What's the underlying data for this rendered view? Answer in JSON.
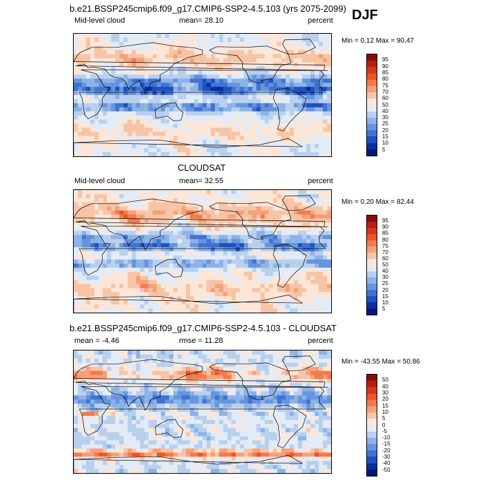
{
  "season": "DJF",
  "panels": [
    {
      "title": "b.e21.BSSP245cmip6.f09_g17.CMIP6-SSP2-4.5.103 (yrs 2075-2099)",
      "left_label": "Mid-level cloud",
      "center_label": "mean=  28.10",
      "right_label": "percent",
      "minmax": "Min =   0.12 Max =  90.47",
      "colorbar": {
        "labels": [
          "95",
          "90",
          "85",
          "80",
          "75",
          "70",
          "60",
          "50",
          "40",
          "30",
          "25",
          "20",
          "15",
          "10",
          "5"
        ],
        "colors": [
          "#8b0a0a",
          "#b5200e",
          "#d6371a",
          "#e9552c",
          "#f27a4c",
          "#f6a07a",
          "#f7c4a6",
          "#fbe6d8",
          "#e2ebf6",
          "#b8d0ee",
          "#8db2e6",
          "#6694dd",
          "#3f73d3",
          "#1e50c4",
          "#0a2e9e",
          "#001a7a"
        ]
      },
      "field": "model"
    },
    {
      "title": "CLOUDSAT",
      "left_label": "Mid-level cloud",
      "center_label": "mean=  32.55",
      "right_label": "percent",
      "minmax": "Min =   0.20 Max =  82.44",
      "colorbar": {
        "labels": [
          "95",
          "90",
          "85",
          "80",
          "75",
          "70",
          "60",
          "50",
          "40",
          "30",
          "25",
          "20",
          "15",
          "10",
          "5"
        ],
        "colors": [
          "#8b0a0a",
          "#b5200e",
          "#d6371a",
          "#e9552c",
          "#f27a4c",
          "#f6a07a",
          "#f7c4a6",
          "#fbe6d8",
          "#e2ebf6",
          "#b8d0ee",
          "#8db2e6",
          "#6694dd",
          "#3f73d3",
          "#1e50c4",
          "#0a2e9e",
          "#001a7a"
        ]
      },
      "field": "obs"
    },
    {
      "title": "b.e21.BSSP245cmip6.f09_g17.CMIP6-SSP2-4.5.103 - CLOUDSAT",
      "left_label": "mean =  -4.46",
      "center_label": "rmse =  11.28",
      "right_label": "percent",
      "minmax": "Min = -43.55 Max =  50.86",
      "colorbar": {
        "labels": [
          "50",
          "40",
          "30",
          "20",
          "15",
          "10",
          "5",
          "0",
          "-5",
          "-10",
          "-15",
          "-20",
          "-30",
          "-40",
          "-50"
        ],
        "colors": [
          "#8b0a0a",
          "#b5200e",
          "#d6371a",
          "#e9552c",
          "#f27a4c",
          "#f6a07a",
          "#f7c4a6",
          "#fbe6d8",
          "#e2ebf6",
          "#b8d0ee",
          "#8db2e6",
          "#6694dd",
          "#3f73d3",
          "#1e50c4",
          "#0a2e9e",
          "#001a7a"
        ]
      },
      "field": "diff"
    }
  ]
}
